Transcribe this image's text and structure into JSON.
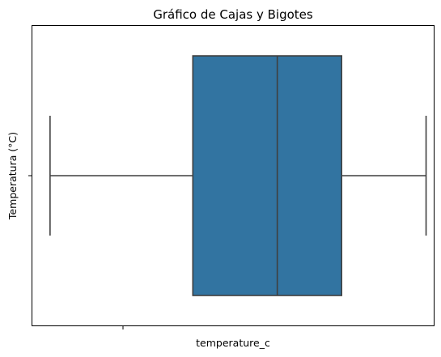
{
  "chart_data": {
    "type": "boxplot",
    "title": "Gráfico de Cajas y Bigotes",
    "xlabel": "temperature_c",
    "ylabel": "Temperatura (°C)",
    "orientation": "horizontal",
    "grid": false,
    "legend": "none",
    "x_tick_labels": [
      ""
    ],
    "y_tick_labels": [
      ""
    ],
    "colors": {
      "box_fill": "#3274a1",
      "box_edge": "#3f3f3f",
      "spine": "#000000"
    },
    "x_axis_fraction_range": [
      0,
      1
    ],
    "boxes": [
      {
        "whisker_low": 0.045,
        "q1": 0.4,
        "median": 0.61,
        "q3": 0.77,
        "whisker_high": 0.98
      }
    ]
  }
}
